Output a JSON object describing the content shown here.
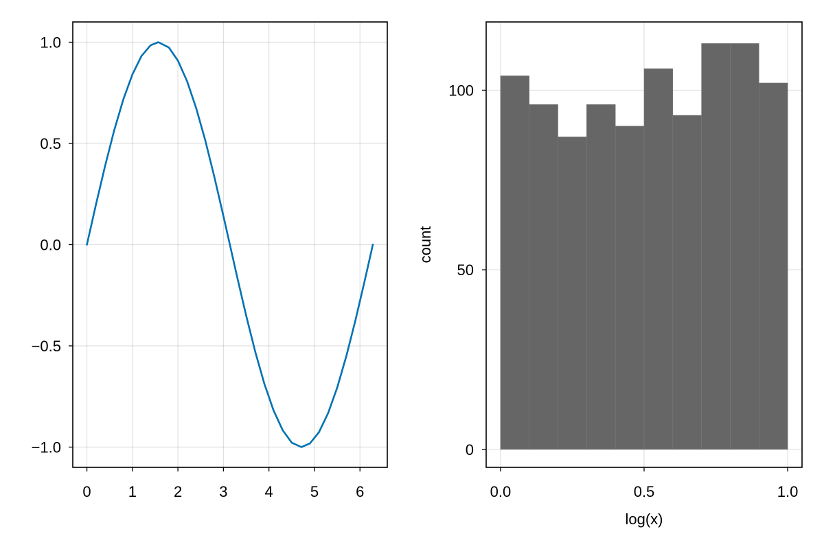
{
  "chart_data": [
    {
      "type": "line",
      "title": "",
      "xlabel": "",
      "ylabel": "",
      "xlim": [
        -0.31,
        6.6
      ],
      "ylim": [
        -1.1,
        1.1
      ],
      "x_ticks": [
        0,
        1,
        2,
        3,
        4,
        5,
        6
      ],
      "x_tick_labels": [
        "0",
        "1",
        "2",
        "3",
        "4",
        "5",
        "6"
      ],
      "y_ticks": [
        -1.0,
        -0.5,
        0.0,
        0.5,
        1.0
      ],
      "y_tick_labels": [
        "−1.0",
        "−0.5",
        "0.0",
        "0.5",
        "1.0"
      ],
      "grid": true,
      "series": [
        {
          "color": "#0072B2",
          "x": [
            0.0,
            0.2,
            0.4,
            0.6,
            0.8,
            1.0,
            1.2,
            1.4,
            1.5708,
            1.8,
            2.0,
            2.2,
            2.4,
            2.6,
            2.8,
            3.0,
            3.1416,
            3.3,
            3.5,
            3.7,
            3.9,
            4.1,
            4.3,
            4.5,
            4.7124,
            4.9,
            5.1,
            5.3,
            5.5,
            5.7,
            5.9,
            6.1,
            6.2832
          ],
          "y": [
            0.0,
            0.199,
            0.389,
            0.565,
            0.717,
            0.841,
            0.932,
            0.985,
            1.0,
            0.974,
            0.909,
            0.808,
            0.675,
            0.516,
            0.335,
            0.141,
            0.0,
            -0.158,
            -0.351,
            -0.53,
            -0.688,
            -0.818,
            -0.916,
            -0.978,
            -1.0,
            -0.982,
            -0.926,
            -0.832,
            -0.706,
            -0.551,
            -0.374,
            -0.182,
            0.0
          ]
        }
      ]
    },
    {
      "type": "bar",
      "title": "",
      "xlabel": "log(x)",
      "ylabel": "count",
      "xlim": [
        -0.05,
        1.05
      ],
      "ylim": [
        -5.0,
        119.0
      ],
      "x_ticks": [
        0.0,
        0.5,
        1.0
      ],
      "x_tick_labels": [
        "0.0",
        "0.5",
        "1.0"
      ],
      "y_ticks": [
        0,
        50,
        100
      ],
      "y_tick_labels": [
        "0",
        "50",
        "100"
      ],
      "grid": true,
      "bar_color": "#666666",
      "bin_edges": [
        0.0,
        0.1,
        0.2,
        0.3,
        0.4,
        0.5,
        0.6,
        0.7,
        0.8,
        0.9,
        1.0
      ],
      "values": [
        104,
        96,
        87,
        96,
        90,
        106,
        93,
        113,
        113,
        102
      ]
    }
  ]
}
